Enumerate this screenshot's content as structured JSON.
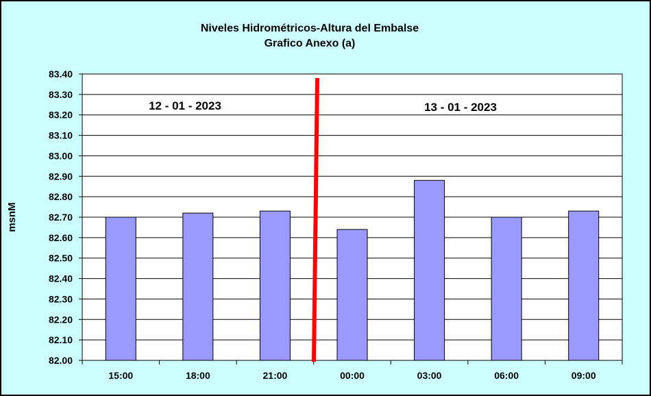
{
  "chart_data": {
    "type": "bar",
    "title": "Niveles Hidrométricos-Altura del Embalse",
    "subtitle": "Grafico Anexo (a)",
    "xlabel": "",
    "ylabel": "msnM",
    "categories": [
      "15:00",
      "18:00",
      "21:00",
      "00:00",
      "03:00",
      "06:00",
      "09:00"
    ],
    "values": [
      82.7,
      82.72,
      82.73,
      82.64,
      82.88,
      82.7,
      82.73
    ],
    "ylim": [
      82.0,
      83.4
    ],
    "yticks": [
      "82.00",
      "82.10",
      "82.20",
      "82.30",
      "82.40",
      "82.50",
      "82.60",
      "82.70",
      "82.80",
      "82.90",
      "83.00",
      "83.10",
      "83.20",
      "83.30",
      "83.40"
    ],
    "grid": true,
    "legend": "none",
    "annotations": [
      "12 - 01 - 2023",
      "13 - 01 - 2023"
    ],
    "colors": {
      "background": "#ccffff",
      "plot_area": "#ffffff",
      "bar": "#9999ff",
      "divider": "#ff0000"
    }
  }
}
